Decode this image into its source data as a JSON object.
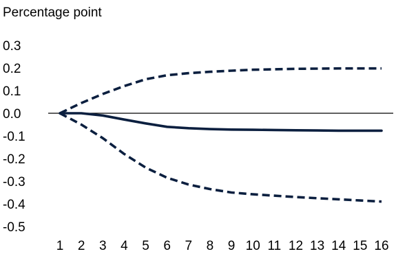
{
  "chart_data": {
    "type": "line",
    "title": "",
    "xlabel": "",
    "ylabel": "Percentage point",
    "x": [
      1,
      2,
      3,
      4,
      5,
      6,
      7,
      8,
      9,
      10,
      11,
      12,
      13,
      14,
      15,
      16
    ],
    "xticks": [
      "1",
      "2",
      "3",
      "4",
      "5",
      "6",
      "7",
      "8",
      "9",
      "10",
      "11",
      "12",
      "13",
      "14",
      "15",
      "16"
    ],
    "ylim": [
      -0.5,
      0.3
    ],
    "yticks": [
      "0.3",
      "0.2",
      "0.1",
      "0.0",
      "-0.1",
      "-0.2",
      "-0.3",
      "-0.4",
      "-0.5"
    ],
    "ytick_values": [
      0.3,
      0.2,
      0.1,
      0.0,
      -0.1,
      -0.2,
      -0.3,
      -0.4,
      -0.5
    ],
    "zero_line": true,
    "grid": false,
    "legend": "none",
    "color": "#0b1f3f",
    "series": [
      {
        "style": "solid",
        "values": [
          0.0,
          0.0,
          -0.01,
          -0.028,
          -0.045,
          -0.06,
          -0.066,
          -0.07,
          -0.072,
          -0.073,
          -0.074,
          -0.075,
          -0.076,
          -0.077,
          -0.077,
          -0.077
        ]
      },
      {
        "style": "dashed",
        "values": [
          0.0,
          0.045,
          0.085,
          0.12,
          0.15,
          0.168,
          0.177,
          0.183,
          0.188,
          0.192,
          0.194,
          0.196,
          0.197,
          0.198,
          0.198,
          0.198
        ]
      },
      {
        "style": "dashed",
        "values": [
          0.0,
          -0.05,
          -0.11,
          -0.18,
          -0.24,
          -0.285,
          -0.315,
          -0.335,
          -0.35,
          -0.358,
          -0.364,
          -0.37,
          -0.375,
          -0.38,
          -0.385,
          -0.39
        ]
      }
    ]
  }
}
